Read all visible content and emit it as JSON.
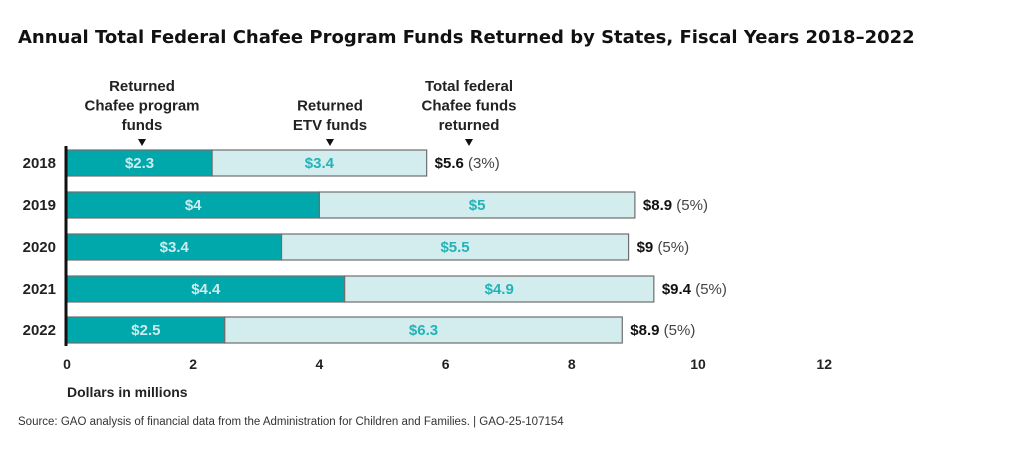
{
  "chart_data": {
    "type": "bar",
    "orientation": "horizontal",
    "stacked": true,
    "title": "Annual Total Federal Chafee Program Funds Returned by States, Fiscal Years 2018–2022",
    "categories": [
      "2018",
      "2019",
      "2020",
      "2021",
      "2022"
    ],
    "series": [
      {
        "name": "Returned Chafee program funds",
        "values": [
          2.3,
          4,
          3.4,
          4.4,
          2.5
        ],
        "labels": [
          "$2.3",
          "$4",
          "$3.4",
          "$4.4",
          "$2.5"
        ],
        "color": "#00a8ab",
        "label_color": "#cfeaec"
      },
      {
        "name": "Returned ETV funds",
        "values": [
          3.4,
          5,
          5.5,
          4.9,
          6.3
        ],
        "labels": [
          "$3.4",
          "$5",
          "$5.5",
          "$4.9",
          "$6.3"
        ],
        "color": "#d3ecee",
        "label_color": "#22b3b6"
      }
    ],
    "totals": {
      "name": "Total federal Chafee funds returned",
      "values": [
        5.6,
        8.9,
        9,
        9.4,
        8.9
      ],
      "labels": [
        "$5.6",
        "$8.9",
        "$9",
        "$9.4",
        "$8.9"
      ],
      "percents": [
        "(3%)",
        "(5%)",
        "(5%)",
        "(5%)",
        "(5%)"
      ]
    },
    "annotations": [
      [
        "Returned",
        "Chafee program",
        "funds"
      ],
      [
        "Returned",
        "ETV funds"
      ],
      [
        "Total federal",
        "Chafee funds",
        "returned"
      ]
    ],
    "xlim": [
      0,
      12
    ],
    "xticks": [
      "0",
      "2",
      "4",
      "6",
      "8",
      "10",
      "12"
    ],
    "xlabel": "Dollars in millions",
    "grid": false,
    "source": "Source: GAO analysis of financial data from the Administration for Children and Families.  |  GAO-25-107154"
  }
}
